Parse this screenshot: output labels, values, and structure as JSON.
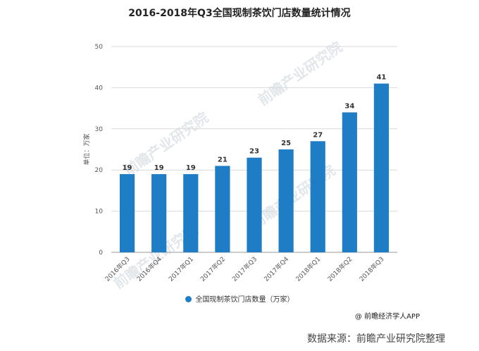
{
  "chart_data": {
    "type": "bar",
    "title": "2016-2018年Q3全国现制茶饮门店数量统计情况",
    "ylabel": "单位：万家",
    "xlabel": "",
    "ylim": [
      0,
      50
    ],
    "yticks": [
      0,
      10,
      20,
      30,
      40,
      50
    ],
    "grid": true,
    "legend_position": "bottom",
    "categories": [
      "2016年Q3",
      "2016年Q4",
      "2017年Q1",
      "2017年Q2",
      "2017年Q3",
      "2017年Q4",
      "2018年Q1",
      "2018年Q2",
      "2018年Q3"
    ],
    "series": [
      {
        "name": "全国现制茶饮门店数量（万家）",
        "values": [
          19,
          19,
          19,
          21,
          23,
          25,
          27,
          34,
          41
        ],
        "color": "#1f7dc6"
      }
    ]
  },
  "credit": "@ 前瞻经济学人APP",
  "source": "数据来源：前瞻产业研究院整理",
  "watermark": "前瞻产业研究院"
}
